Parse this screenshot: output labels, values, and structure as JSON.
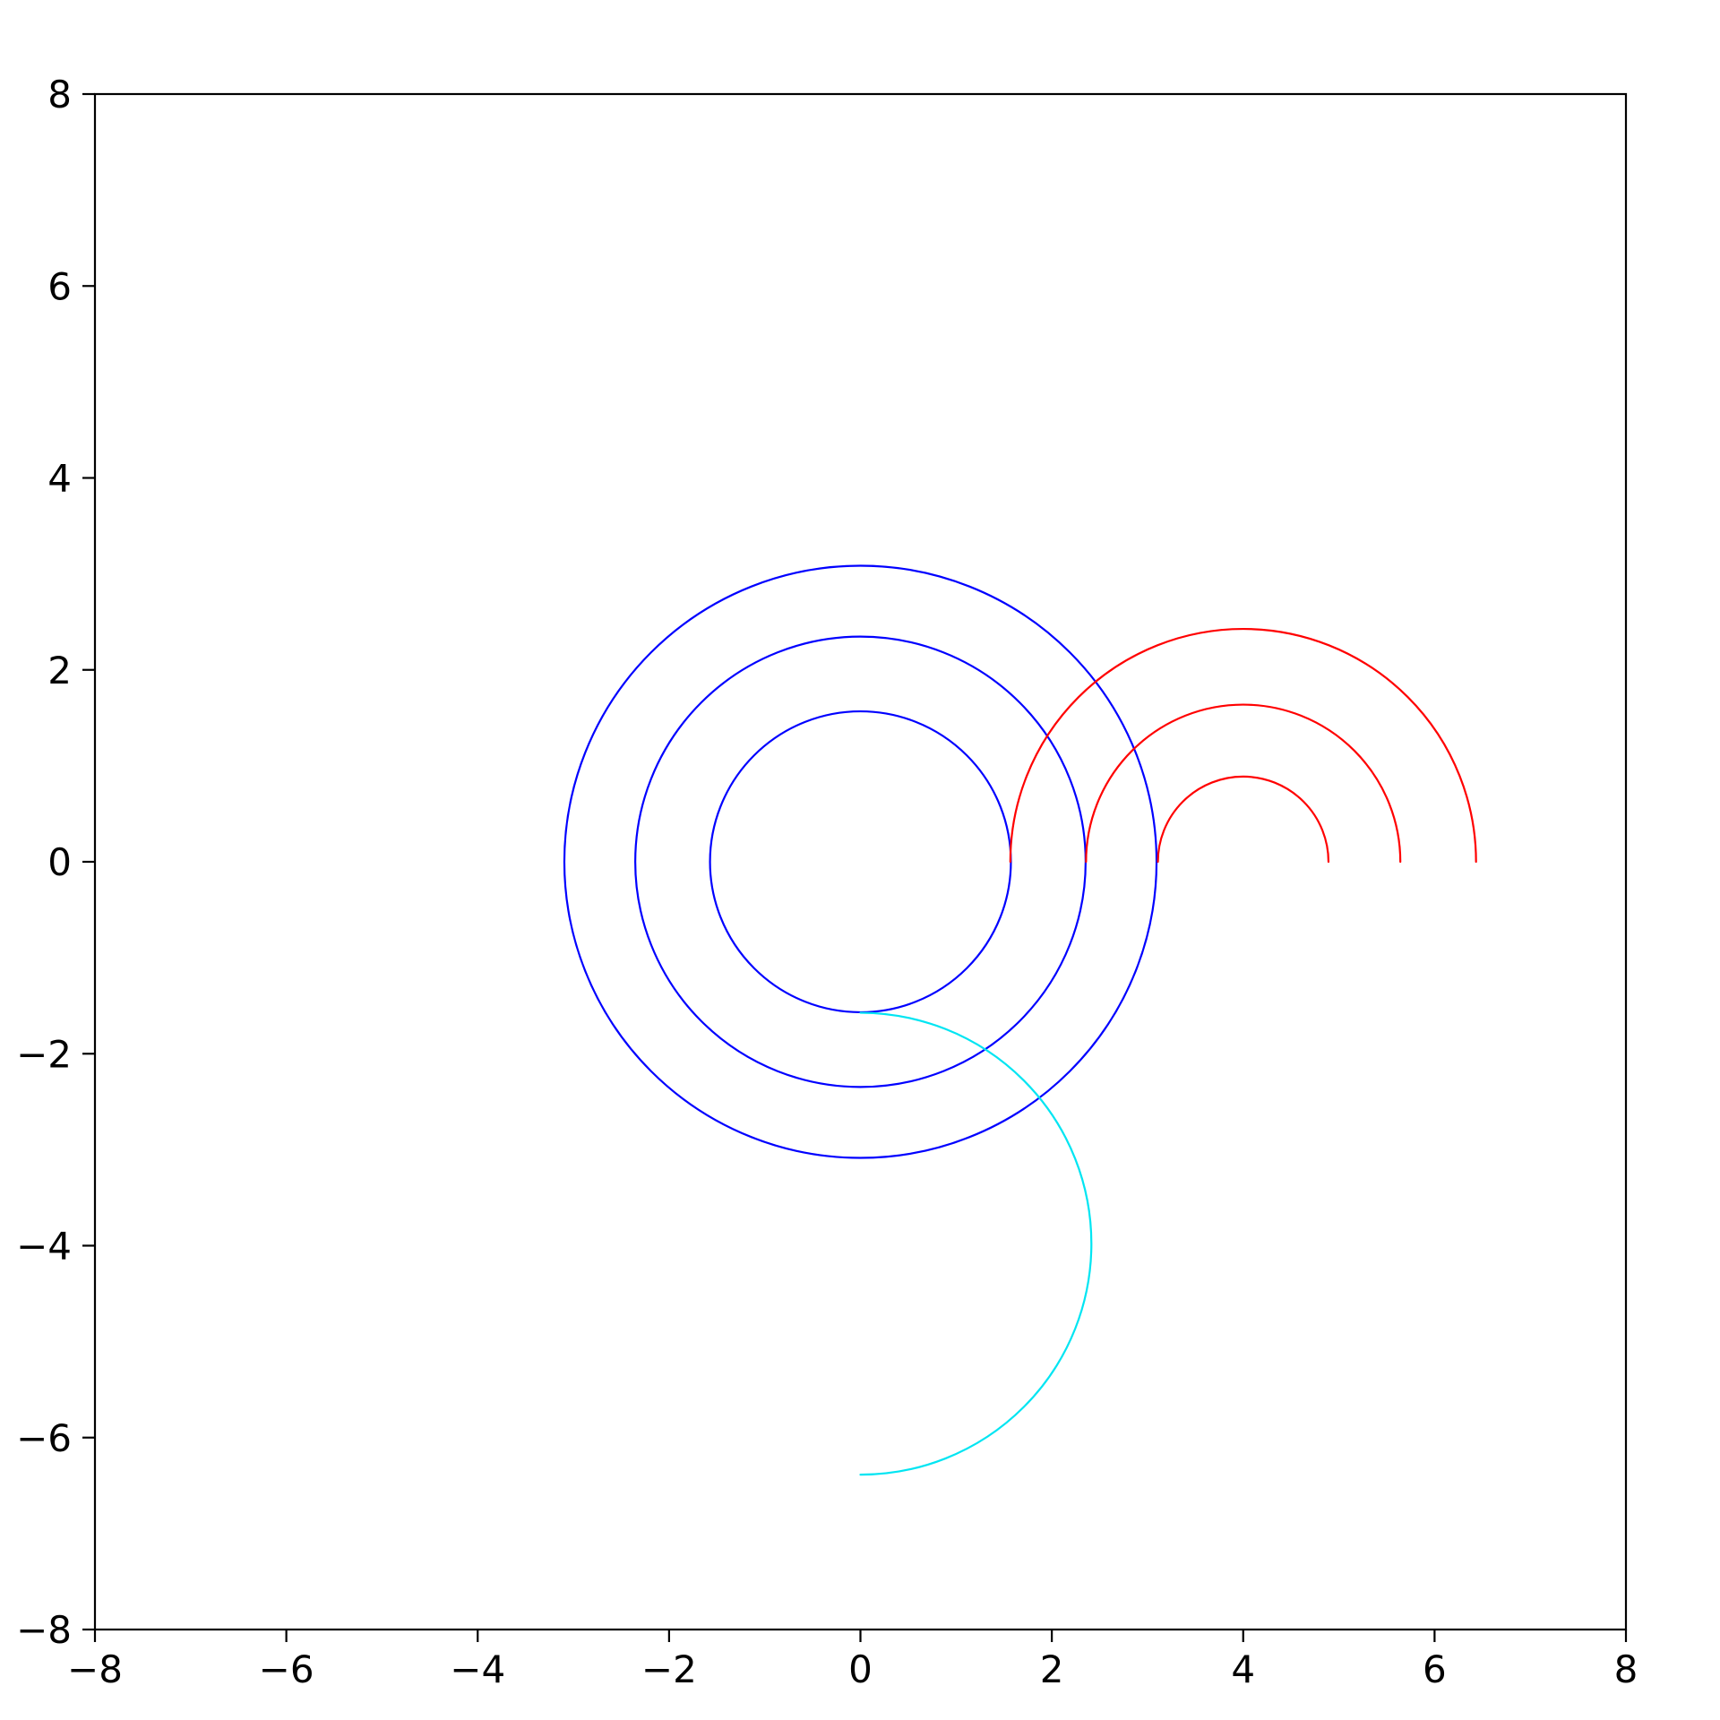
{
  "figure": {
    "background": "#ffffff",
    "axes_color": "#000000"
  },
  "chart_data": {
    "type": "line",
    "title": "",
    "xlabel": "",
    "ylabel": "",
    "xlim": [
      -8,
      8
    ],
    "ylim": [
      -8,
      8
    ],
    "grid": false,
    "legend": null,
    "x_ticks": {
      "values": [
        -8,
        -6,
        -4,
        -2,
        0,
        2,
        4,
        6,
        8
      ],
      "labels": [
        "−8",
        "−6",
        "−4",
        "−2",
        "0",
        "2",
        "4",
        "6",
        "8"
      ]
    },
    "y_ticks": {
      "values": [
        -8,
        -6,
        -4,
        -2,
        0,
        2,
        4,
        6,
        8
      ],
      "labels": [
        "−8",
        "−6",
        "−4",
        "−2",
        "0",
        "2",
        "4",
        "6",
        "8"
      ]
    },
    "colors": {
      "blue": "#0000ff",
      "red": "#ff0000",
      "cyan": "#00e5f2"
    },
    "line_width": 2.2,
    "series": [
      {
        "name": "blue-circle-inner",
        "shape": "circle",
        "center": [
          0,
          0
        ],
        "radius": 1.57,
        "color": "#0000ff"
      },
      {
        "name": "blue-circle-middle",
        "shape": "circle",
        "center": [
          0,
          0
        ],
        "radius": 2.35,
        "color": "#0000ff"
      },
      {
        "name": "blue-circle-outer",
        "shape": "circle",
        "center": [
          0,
          0
        ],
        "radius": 3.09,
        "color": "#0000ff"
      },
      {
        "name": "red-arc-small",
        "shape": "arc",
        "center": [
          4,
          0
        ],
        "radius": 0.89,
        "start_deg": 180,
        "end_deg": 0,
        "direction": "cw",
        "color": "#ff0000"
      },
      {
        "name": "red-arc-middle",
        "shape": "arc",
        "center": [
          4,
          0
        ],
        "radius": 1.64,
        "start_deg": 180,
        "end_deg": 0,
        "direction": "cw",
        "color": "#ff0000"
      },
      {
        "name": "red-arc-large",
        "shape": "arc",
        "center": [
          4,
          0
        ],
        "radius": 2.43,
        "start_deg": 180,
        "end_deg": 0,
        "direction": "cw",
        "color": "#ff0000"
      },
      {
        "name": "cyan-half-circle",
        "shape": "arc",
        "center": [
          0,
          -3.98
        ],
        "radius": 2.41,
        "start_deg": 90,
        "end_deg": -90,
        "direction": "cw",
        "color": "#00e5f2"
      }
    ]
  }
}
